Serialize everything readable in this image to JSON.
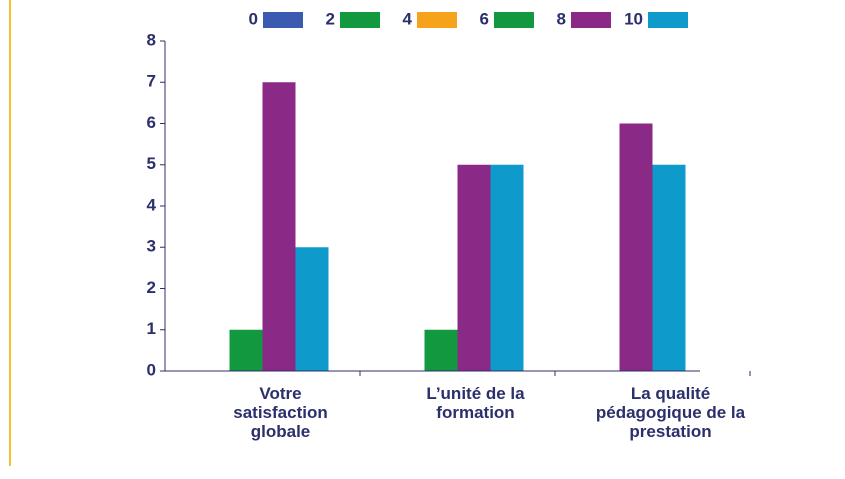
{
  "chart_data": {
    "type": "bar",
    "categories": [
      "Votre satisfaction globale",
      "L’unité de la formation",
      "La qualité pédagogique de la prestation"
    ],
    "series": [
      {
        "name": "0",
        "color": "#3a5bb0",
        "values": [
          null,
          null,
          null
        ]
      },
      {
        "name": "2",
        "color": "#12993f",
        "values": [
          null,
          null,
          null
        ]
      },
      {
        "name": "4",
        "color": "#f7a21b",
        "values": [
          0,
          0,
          null
        ]
      },
      {
        "name": "6",
        "color": "#12993f",
        "values": [
          1,
          1,
          null
        ]
      },
      {
        "name": "8",
        "color": "#8b2a86",
        "values": [
          7,
          5,
          6
        ]
      },
      {
        "name": "10",
        "color": "#0e9bcb",
        "values": [
          3,
          5,
          5
        ]
      }
    ],
    "ylim": [
      0,
      8
    ],
    "yticks": [
      0,
      1,
      2,
      3,
      4,
      5,
      6,
      7,
      8
    ],
    "legend": "top"
  }
}
